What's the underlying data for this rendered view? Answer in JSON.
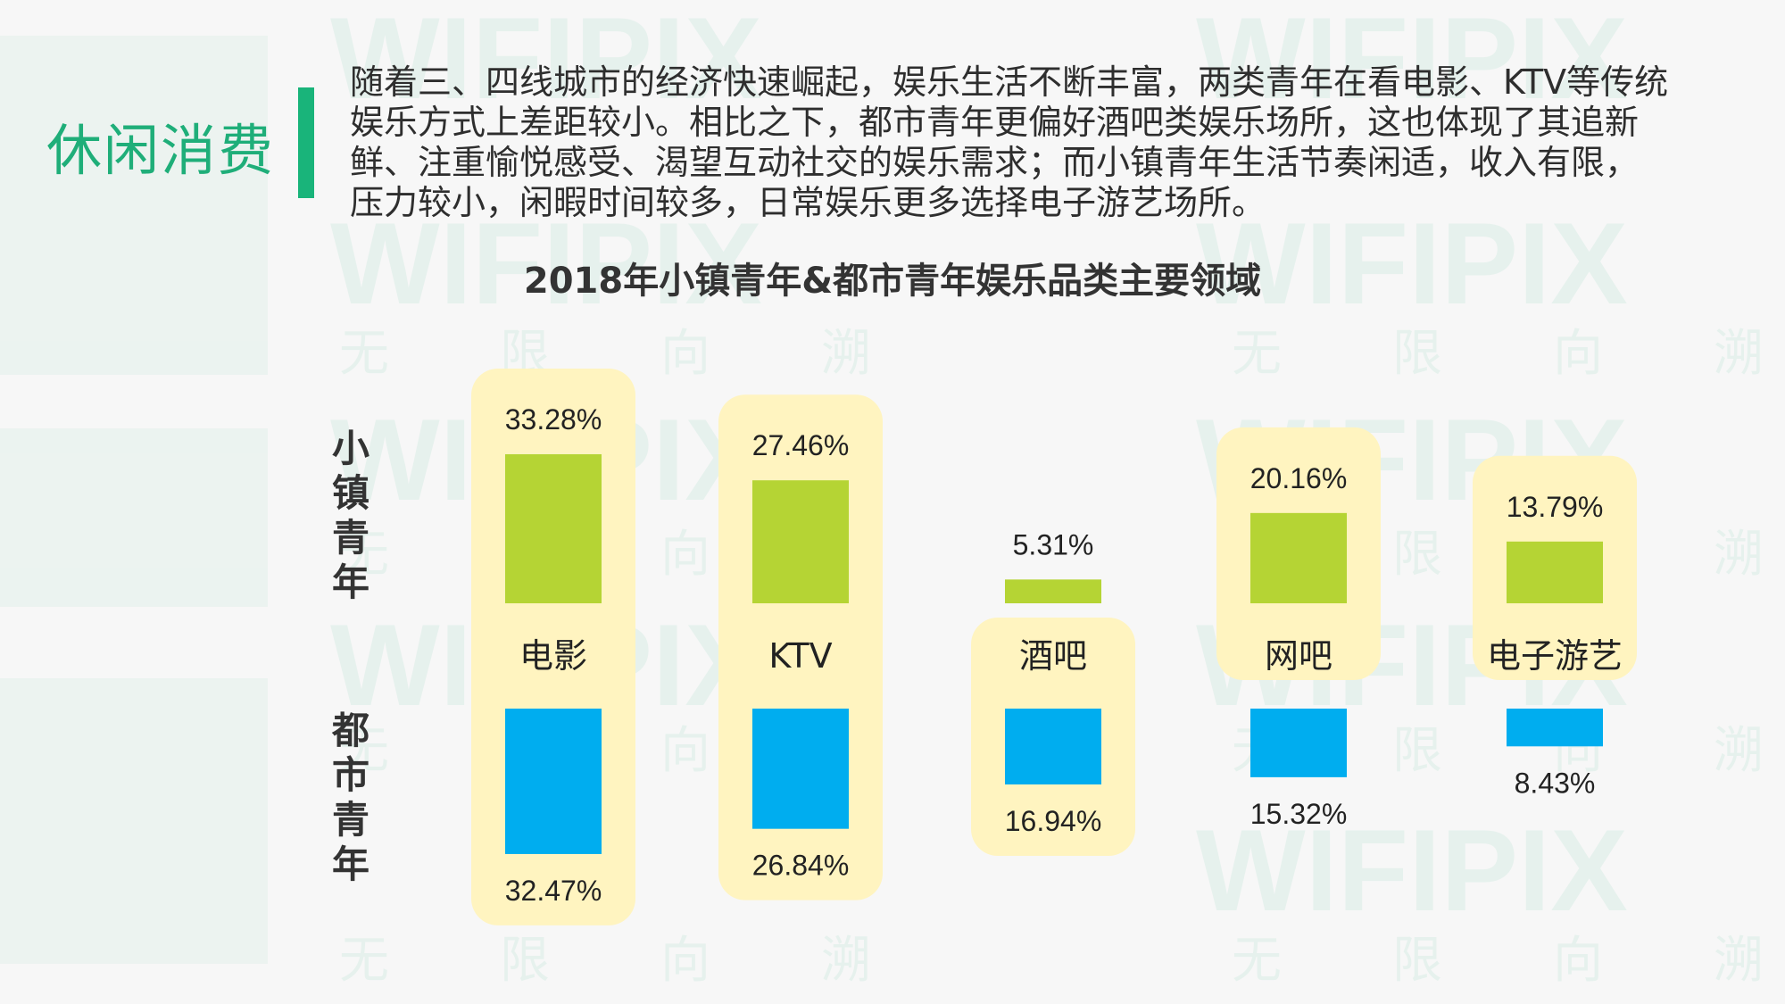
{
  "header": {
    "section_title": "休闲消费",
    "intro_text": "随着三、四线城市的经济快速崛起，娱乐生活不断丰富，两类青年在看电影、KTV等传统娱乐方式上差距较小。相比之下，都市青年更偏好酒吧类娱乐场所，这也体现了其追新鲜、注重愉悦感受、渴望互动社交的娱乐需求；而小镇青年生活节奏闲适，收入有限，压力较小，闲暇时间较多，日常娱乐更多选择电子游艺场所。"
  },
  "watermark": {
    "brand": "WIFIPIX",
    "tagline": [
      "无",
      "限",
      "向",
      "溯"
    ]
  },
  "colors": {
    "small_town": "#b5d434",
    "urban": "#00adef",
    "highlight": "#fff4c0",
    "accent": "#19b47a"
  },
  "chart_data": {
    "type": "bar",
    "title": "2018年小镇青年&都市青年娱乐品类主要领域",
    "categories": [
      "电影",
      "KTV",
      "酒吧",
      "网吧",
      "电子游艺"
    ],
    "series": [
      {
        "name": "小镇青年",
        "values": [
          33.28,
          27.46,
          5.31,
          20.16,
          13.79
        ],
        "labels": [
          "33.28%",
          "27.46%",
          "5.31%",
          "20.16%",
          "13.79%"
        ]
      },
      {
        "name": "都市青年",
        "values": [
          32.47,
          26.84,
          16.94,
          15.32,
          8.43
        ],
        "labels": [
          "32.47%",
          "26.84%",
          "16.94%",
          "15.32%",
          "8.43%"
        ]
      }
    ],
    "highlights": [
      {
        "category": "电影",
        "series": [
          "小镇青年",
          "都市青年"
        ]
      },
      {
        "category": "KTV",
        "series": [
          "小镇青年",
          "都市青年"
        ]
      },
      {
        "category": "酒吧",
        "series": [
          "都市青年"
        ]
      },
      {
        "category": "网吧",
        "series": [
          "小镇青年"
        ]
      },
      {
        "category": "电子游艺",
        "series": [
          "小镇青年"
        ]
      }
    ],
    "ylim": [
      0,
      35
    ],
    "grid": false,
    "legend": "left"
  }
}
